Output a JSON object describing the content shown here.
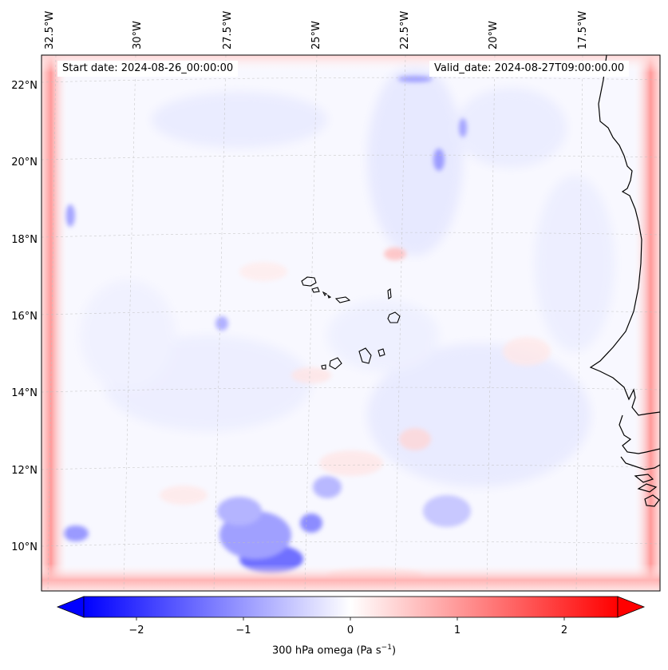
{
  "header": {
    "start_date": "Start date: 2024-08-26_00:00:00",
    "valid_date": "Valid_date: 2024-08-27T09:00:00.00"
  },
  "map": {
    "lon_labels": [
      "32.5°W",
      "30°W",
      "27.5°W",
      "25°W",
      "22.5°W",
      "20°W",
      "17.5°W"
    ],
    "lat_labels": [
      "22°N",
      "20°N",
      "18°N",
      "16°N",
      "14°N",
      "12°N",
      "10°N"
    ],
    "gridlines": true,
    "colors": {
      "negative": "#0000ff",
      "neutral": "#ffffff",
      "positive": "#ff0000",
      "coast": "#000000"
    }
  },
  "colorbar": {
    "ticks": [
      "−2",
      "−1",
      "0",
      "1",
      "2"
    ],
    "range": [
      -2.5,
      2.5
    ],
    "label_text": "300 hPa omega (Pa s",
    "label_exp": "−1",
    "label_close": ")"
  }
}
